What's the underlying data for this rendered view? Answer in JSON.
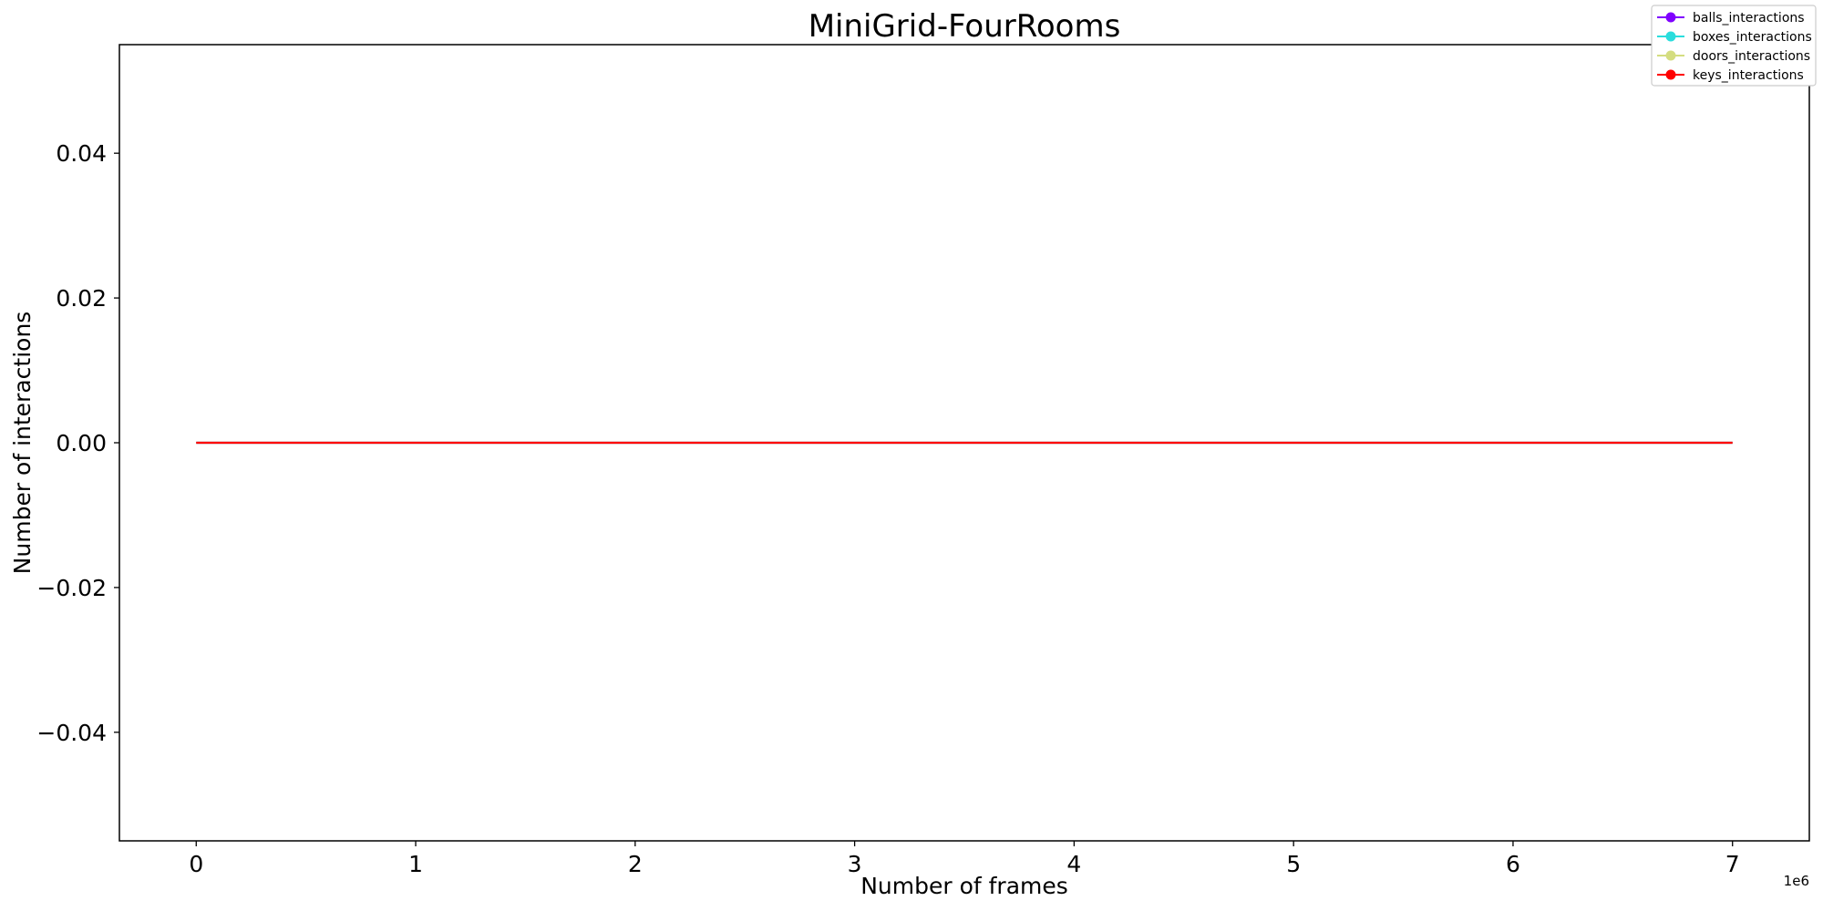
{
  "chart_data": {
    "type": "line",
    "title": "MiniGrid-FourRooms",
    "xlabel": "Number of frames",
    "ylabel": "Number of interactions",
    "x_offset_label": "1e6",
    "xlim": [
      -0.35,
      7.35
    ],
    "ylim": [
      -0.055,
      0.055
    ],
    "x_ticks": [
      0,
      1,
      2,
      3,
      4,
      5,
      6,
      7
    ],
    "x_tick_labels": [
      "0",
      "1",
      "2",
      "3",
      "4",
      "5",
      "6",
      "7"
    ],
    "y_ticks": [
      0.04,
      0.02,
      0.0,
      -0.02,
      -0.04
    ],
    "y_tick_labels": [
      "0.04",
      "0.02",
      "0.00",
      "−0.02",
      "−0.04"
    ],
    "legend_position": "top-right",
    "grid": false,
    "x": [
      0,
      7
    ],
    "series": [
      {
        "name": "balls_interactions",
        "color": "#8000ff",
        "values": [
          0,
          0
        ]
      },
      {
        "name": "boxes_interactions",
        "color": "#2adddd",
        "values": [
          0,
          0
        ]
      },
      {
        "name": "doors_interactions",
        "color": "#d4dd80",
        "values": [
          0,
          0
        ]
      },
      {
        "name": "keys_interactions",
        "color": "#ff0000",
        "values": [
          0,
          0
        ]
      }
    ]
  }
}
